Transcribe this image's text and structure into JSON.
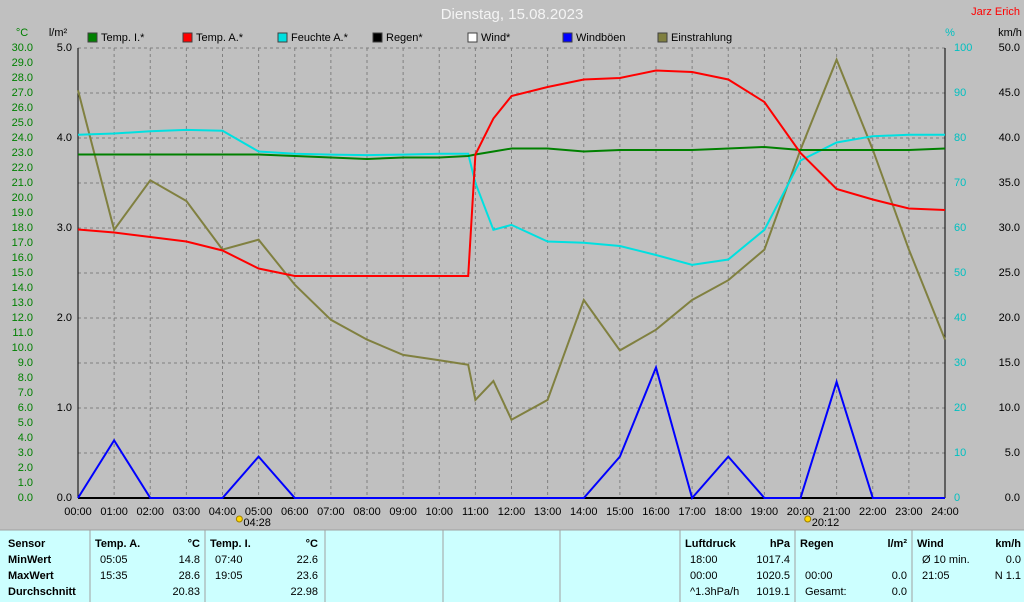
{
  "title": "Dienstag, 15.08.2023",
  "author": "Jarz Erich",
  "chart_data": {
    "type": "line",
    "axis_units": {
      "y": "°C",
      "y3": "l/m²",
      "y2": "%",
      "y4": "km/h"
    },
    "x": [
      0,
      1,
      2,
      3,
      4,
      5,
      6,
      7,
      8,
      9,
      10,
      10.8,
      11,
      11.5,
      12,
      13,
      14,
      15,
      16,
      17,
      18,
      19,
      20,
      21,
      22,
      23,
      24
    ],
    "xlim": [
      0,
      24
    ],
    "xticks": [
      {
        "value": 0,
        "label": "00:00"
      },
      {
        "value": 1,
        "label": "01:00"
      },
      {
        "value": 2,
        "label": "02:00"
      },
      {
        "value": 3,
        "label": "03:00"
      },
      {
        "value": 4,
        "label": "04:00"
      },
      {
        "value": 5,
        "label": "05:00"
      },
      {
        "value": 6,
        "label": "06:00"
      },
      {
        "value": 7,
        "label": "07:00"
      },
      {
        "value": 8,
        "label": "08:00"
      },
      {
        "value": 9,
        "label": "09:00"
      },
      {
        "value": 10,
        "label": "10:00"
      },
      {
        "value": 11,
        "label": "11:00"
      },
      {
        "value": 12,
        "label": "12:00"
      },
      {
        "value": 13,
        "label": "13:00"
      },
      {
        "value": 14,
        "label": "14:00"
      },
      {
        "value": 15,
        "label": "15:00"
      },
      {
        "value": 16,
        "label": "16:00"
      },
      {
        "value": 17,
        "label": "17:00"
      },
      {
        "value": 18,
        "label": "18:00"
      },
      {
        "value": 19,
        "label": "19:00"
      },
      {
        "value": 20,
        "label": "20:00"
      },
      {
        "value": 21,
        "label": "21:00"
      },
      {
        "value": 22,
        "label": "22:00"
      },
      {
        "value": 23,
        "label": "23:00"
      },
      {
        "value": 24,
        "label": "24:00"
      }
    ],
    "ylim": [
      0,
      30
    ],
    "yticks": [
      {
        "value": 30,
        "label": "30.0"
      },
      {
        "value": 29,
        "label": "29.0"
      },
      {
        "value": 28,
        "label": "28.0"
      },
      {
        "value": 27,
        "label": "27.0"
      },
      {
        "value": 26,
        "label": "26.0"
      },
      {
        "value": 25,
        "label": "25.0"
      },
      {
        "value": 24,
        "label": "24.0"
      },
      {
        "value": 23,
        "label": "23.0"
      },
      {
        "value": 22,
        "label": "22.0"
      },
      {
        "value": 21,
        "label": "21.0"
      },
      {
        "value": 20,
        "label": "20.0"
      },
      {
        "value": 19,
        "label": "19.0"
      },
      {
        "value": 18,
        "label": "18.0"
      },
      {
        "value": 17,
        "label": "17.0"
      },
      {
        "value": 16,
        "label": "16.0"
      },
      {
        "value": 15,
        "label": "15.0"
      },
      {
        "value": 14,
        "label": "14.0"
      },
      {
        "value": 13,
        "label": "13.0"
      },
      {
        "value": 12,
        "label": "12.0"
      },
      {
        "value": 11,
        "label": "11.0"
      },
      {
        "value": 10,
        "label": "10.0"
      },
      {
        "value": 9,
        "label": "9.0"
      },
      {
        "value": 8,
        "label": "8.0"
      },
      {
        "value": 7,
        "label": "7.0"
      },
      {
        "value": 6,
        "label": "6.0"
      },
      {
        "value": 5,
        "label": "5.0"
      },
      {
        "value": 4,
        "label": "4.0"
      },
      {
        "value": 3,
        "label": "3.0"
      },
      {
        "value": 2,
        "label": "2.0"
      },
      {
        "value": 1,
        "label": "1.0"
      },
      {
        "value": 0,
        "label": "0.0"
      }
    ],
    "y3lim": [
      0,
      5
    ],
    "y3ticks": [
      {
        "value": 5,
        "label": "5.0"
      },
      {
        "value": 4,
        "label": "4.0"
      },
      {
        "value": 3,
        "label": "3.0"
      },
      {
        "value": 2,
        "label": "2.0"
      },
      {
        "value": 1,
        "label": "1.0"
      },
      {
        "value": 0,
        "label": "0.0"
      }
    ],
    "y2lim": [
      0,
      100
    ],
    "y2ticks": [
      100,
      90,
      80,
      70,
      60,
      50,
      40,
      30,
      20,
      10,
      0
    ],
    "y4lim": [
      0,
      50
    ],
    "y4ticks": [
      {
        "value": 50,
        "label": "50.0"
      },
      {
        "value": 45,
        "label": "45.0"
      },
      {
        "value": 40,
        "label": "40.0"
      },
      {
        "value": 35,
        "label": "35.0"
      },
      {
        "value": 30,
        "label": "30.0"
      },
      {
        "value": 25,
        "label": "25.0"
      },
      {
        "value": 20,
        "label": "20.0"
      },
      {
        "value": 15,
        "label": "15.0"
      },
      {
        "value": 10,
        "label": "10.0"
      },
      {
        "value": 5,
        "label": "5.0"
      },
      {
        "value": 0,
        "label": "0.0"
      }
    ],
    "grid": true,
    "series": [
      {
        "name": "Temp. I.*",
        "color": "#008000",
        "axis": "y",
        "values": [
          22.9,
          22.9,
          22.9,
          22.9,
          22.9,
          22.9,
          22.8,
          22.7,
          22.6,
          22.7,
          22.7,
          22.8,
          22.9,
          23.1,
          23.3,
          23.3,
          23.1,
          23.2,
          23.2,
          23.2,
          23.3,
          23.4,
          23.2,
          23.2,
          23.2,
          23.2,
          23.3
        ]
      },
      {
        "name": "Temp. A.*",
        "color": "#ff0000",
        "axis": "y",
        "values": [
          17.9,
          17.7,
          17.4,
          17.1,
          16.5,
          15.3,
          14.8,
          14.8,
          14.8,
          14.8,
          14.8,
          14.8,
          22.9,
          25.3,
          26.8,
          27.4,
          27.9,
          28.0,
          28.5,
          28.4,
          27.9,
          26.4,
          23.0,
          20.6,
          19.9,
          19.3,
          19.2
        ]
      },
      {
        "name": "Feuchte A.*",
        "color": "#00e0e0",
        "axis": "y2",
        "values": [
          80.7,
          81,
          81.5,
          81.8,
          81.6,
          77,
          76.5,
          76.3,
          76.2,
          76.3,
          76.5,
          76.5,
          70,
          59.6,
          60.7,
          57,
          56.7,
          56,
          54,
          51.8,
          53,
          59.6,
          75,
          79,
          80.4,
          80.7,
          80.7
        ]
      },
      {
        "name": "Regen*",
        "color": "#000000",
        "axis": "y3",
        "values": [
          0,
          0,
          0,
          0,
          0,
          0,
          0,
          0,
          0,
          0,
          0,
          0,
          0,
          0,
          0,
          0,
          0,
          0,
          0,
          0,
          0,
          0,
          0,
          0,
          0,
          0,
          0
        ]
      },
      {
        "name": "Wind*",
        "color": "#ffffff",
        "axis": "y4",
        "values": [
          0,
          0,
          0,
          0,
          0,
          0,
          0,
          0,
          0,
          0,
          0,
          0,
          0,
          0,
          0,
          0,
          0,
          0,
          0,
          0,
          0,
          0,
          0,
          0,
          0,
          0,
          0
        ]
      },
      {
        "name": "Windböen",
        "color": "#0000ff",
        "axis": "y4",
        "values": [
          0,
          6.4,
          0,
          0,
          0,
          4.6,
          0,
          0,
          0,
          0,
          0,
          0,
          0,
          0,
          0,
          0,
          0,
          4.6,
          14.5,
          0,
          4.6,
          0,
          0,
          12.9,
          0,
          0,
          0
        ]
      },
      {
        "name": "Einstrahlung",
        "color": "#808040",
        "axis": "y4",
        "values": [
          45.3,
          29.8,
          35.3,
          33,
          27.6,
          28.7,
          23.7,
          19.8,
          17.6,
          15.9,
          15.3,
          14.8,
          10.9,
          13,
          8.7,
          10.9,
          22,
          16.4,
          18.7,
          22,
          24.2,
          27.6,
          38.7,
          48.7,
          38.7,
          27.6,
          17.6
        ]
      }
    ],
    "annotations": [
      {
        "x": 4.4667,
        "label": "04:28"
      },
      {
        "x": 20.2,
        "label": "20:12"
      }
    ]
  },
  "table": {
    "row_labels": [
      "Sensor",
      "MinWert",
      "MaxWert",
      "Durchschnitt"
    ],
    "blocks": [
      {
        "header": [
          "Temp. A.",
          "°C"
        ],
        "rows": [
          [
            "05:05",
            "14.8"
          ],
          [
            "15:35",
            "28.6"
          ],
          [
            "20.83"
          ]
        ]
      },
      {
        "header": [
          "Temp. I.",
          "°C"
        ],
        "rows": [
          [
            "07:40",
            "22.6"
          ],
          [
            "19:05",
            "23.6"
          ],
          [
            "22.98"
          ]
        ]
      },
      {
        "header": [
          "Luftdruck",
          "hPa"
        ],
        "rows": [
          [
            "18:00",
            "1017.4"
          ],
          [
            "00:00",
            "1020.5"
          ],
          [
            "^1.3hPa/h",
            "1019.1"
          ]
        ]
      },
      {
        "header": [
          "Regen",
          "l/m²"
        ],
        "rows": [
          [],
          [
            "00:00",
            "0.0"
          ],
          [
            "Gesamt:",
            "0.0"
          ]
        ]
      },
      {
        "header": [
          "Wind",
          "km/h"
        ],
        "rows": [
          [
            "Ø 10 min.",
            "0.0"
          ],
          [
            "21:05",
            "N 1.1"
          ],
          []
        ]
      }
    ]
  }
}
